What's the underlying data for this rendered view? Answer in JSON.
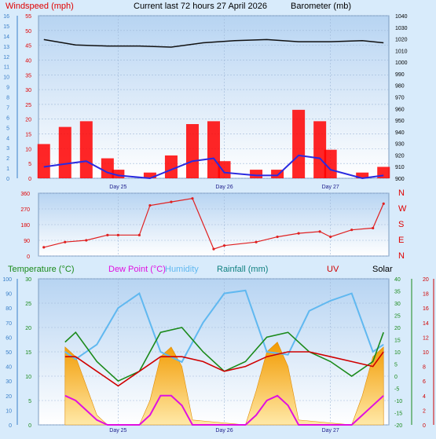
{
  "header": {
    "left_label": "Windspeed (mph)",
    "center_label": "Current last 72 hours 27 April 2026",
    "right_label": "Barometer (mb)"
  },
  "colors": {
    "windspeed": "#e00000",
    "gust": "#ff0000",
    "avg_wind": "#2a2ae0",
    "barometer": "#101010",
    "direction": "#e02020",
    "temperature": "#1a8a1a",
    "dewpoint": "#e010e0",
    "humidity": "#60b8f0",
    "rainfall": "#108080",
    "uv": "#d00000",
    "solar": "#f5a000",
    "gridline": "#9fb8d8",
    "panel_top": "#b9d6f3",
    "panel_bottom": "#ffffff"
  },
  "chart_data": [
    {
      "type": "line",
      "panel": "wind-barometer",
      "series": [
        {
          "name": "Windspeed (mph)",
          "axis": "left",
          "color_key": "gust",
          "kind": "bars",
          "x_days": [
            24.3,
            24.5,
            24.7,
            24.9,
            25.0,
            25.3,
            25.5,
            25.7,
            25.9,
            26.0,
            26.3,
            26.5,
            26.7,
            26.9,
            27.0,
            27.3,
            27.5
          ],
          "values": [
            12,
            18,
            20,
            7,
            3,
            2,
            8,
            19,
            20,
            6,
            3,
            3,
            24,
            20,
            10,
            2,
            4
          ]
        },
        {
          "name": "Average wind (mph)",
          "axis": "left",
          "color_key": "avg_wind",
          "kind": "line",
          "x_days": [
            24.3,
            24.5,
            24.7,
            24.9,
            25.0,
            25.3,
            25.5,
            25.7,
            25.9,
            26.0,
            26.3,
            26.5,
            26.7,
            26.9,
            27.0,
            27.3,
            27.5
          ],
          "values": [
            4,
            5,
            6,
            2,
            1,
            0,
            3,
            6,
            7,
            2,
            1,
            1,
            8,
            7,
            3,
            0,
            1
          ]
        },
        {
          "name": "Barometer (mb)",
          "axis": "right",
          "color_key": "barometer",
          "kind": "line",
          "x_days": [
            24.3,
            24.6,
            24.9,
            25.2,
            25.5,
            25.8,
            26.1,
            26.4,
            26.7,
            27.0,
            27.3,
            27.5
          ],
          "values": [
            1025,
            1020,
            1019,
            1019,
            1018,
            1022,
            1024,
            1025,
            1023,
            1023,
            1024,
            1022
          ]
        }
      ],
      "y_left_ticks": [
        "0",
        "5",
        "10",
        "15",
        "20",
        "25",
        "30",
        "35",
        "40",
        "45",
        "50",
        "55"
      ],
      "y_far_left_ticks": [
        "0",
        "1",
        "2",
        "3",
        "4",
        "5",
        "6",
        "7",
        "8",
        "9",
        "10",
        "11",
        "12",
        "13",
        "14",
        "15",
        "16"
      ],
      "y_right_ticks": [
        "900",
        "910",
        "920",
        "930",
        "940",
        "950",
        "960",
        "970",
        "980",
        "990",
        "1000",
        "1010",
        "1020",
        "1030",
        "1040"
      ],
      "ylim_left": [
        0,
        57
      ],
      "ylim_right": [
        897,
        1047
      ],
      "x_labels": [
        "Day 25",
        "Day 26",
        "Day 27"
      ],
      "grid": true
    },
    {
      "type": "scatter",
      "panel": "wind-direction",
      "series": [
        {
          "name": "Wind direction",
          "color_key": "direction",
          "x_days": [
            24.3,
            24.5,
            24.7,
            24.9,
            25.0,
            25.2,
            25.3,
            25.5,
            25.7,
            25.9,
            26.0,
            26.3,
            26.5,
            26.7,
            26.9,
            27.0,
            27.2,
            27.4,
            27.5
          ],
          "values": [
            50,
            80,
            90,
            120,
            120,
            120,
            290,
            310,
            330,
            40,
            60,
            80,
            110,
            130,
            140,
            110,
            150,
            160,
            300
          ]
        }
      ],
      "y_left_ticks": [
        "0",
        "90",
        "180",
        "270",
        "360"
      ],
      "y_right_ticks": [
        "N",
        "E",
        "S",
        "W",
        "N"
      ],
      "ylim": [
        0,
        360
      ],
      "grid": true
    },
    {
      "type": "area",
      "panel": "temperature-humidity",
      "legend": [
        "Temperature (°C)",
        "Dew Point (°C)",
        "Humidity",
        "Rainfall (mm)",
        "UV",
        "Solar"
      ],
      "series": [
        {
          "name": "Solar",
          "color_key": "solar",
          "kind": "area",
          "x_days": [
            24.5,
            24.6,
            24.7,
            24.8,
            24.9,
            25.2,
            25.3,
            25.4,
            25.5,
            25.6,
            25.7,
            26.2,
            26.3,
            26.4,
            26.5,
            26.6,
            26.7,
            27.2,
            27.3,
            27.4,
            27.5
          ],
          "values": [
            16,
            14,
            8,
            2,
            0,
            0,
            5,
            14,
            16,
            12,
            1,
            0,
            7,
            15,
            17,
            12,
            1,
            0,
            6,
            14,
            16
          ]
        },
        {
          "name": "UV",
          "color_key": "uv",
          "kind": "line",
          "x_days": [
            24.5,
            24.6,
            24.7,
            24.8,
            24.9,
            25.2,
            25.3,
            25.4,
            25.5,
            25.6,
            25.7,
            26.2,
            26.3,
            26.4,
            26.5,
            26.6,
            26.7,
            27.2,
            27.3,
            27.4,
            27.5
          ],
          "values": [
            6,
            5,
            3,
            1,
            0,
            0,
            2,
            6,
            6,
            4,
            0,
            0,
            2,
            5,
            6,
            4,
            0,
            0,
            2,
            4,
            6
          ]
        },
        {
          "name": "Temperature (°C)",
          "color_key": "temperature",
          "kind": "line",
          "x_days": [
            24.5,
            24.6,
            24.8,
            25.0,
            25.2,
            25.4,
            25.6,
            25.8,
            26.0,
            26.2,
            26.4,
            26.6,
            26.8,
            27.0,
            27.2,
            27.4,
            27.5
          ],
          "values": [
            17,
            19,
            13,
            9,
            11,
            19,
            20,
            15,
            11,
            13,
            18,
            19,
            15,
            13,
            10,
            13,
            19
          ]
        },
        {
          "name": "Dew Point (°C)",
          "color_key": "dewpoint",
          "kind": "line",
          "x_days": [
            24.5,
            24.6,
            24.8,
            25.0,
            25.2,
            25.4,
            25.6,
            25.8,
            26.0,
            26.2,
            26.4,
            26.6,
            26.8,
            27.0,
            27.2,
            27.4,
            27.5
          ],
          "values": [
            14,
            14,
            11,
            8,
            11,
            14,
            14,
            13,
            11,
            12,
            14,
            15,
            15,
            14,
            13,
            12,
            15
          ]
        },
        {
          "name": "Humidity",
          "color_key": "humidity",
          "kind": "line",
          "x_days": [
            24.5,
            24.6,
            24.8,
            25.0,
            25.2,
            25.4,
            25.6,
            25.8,
            26.0,
            26.2,
            26.4,
            26.6,
            26.8,
            27.0,
            27.2,
            27.4,
            27.5
          ],
          "values": [
            50,
            45,
            55,
            80,
            90,
            50,
            43,
            70,
            90,
            92,
            50,
            48,
            78,
            85,
            90,
            50,
            55
          ]
        }
      ],
      "y_far_left_ticks": [
        "0",
        "10",
        "20",
        "30",
        "40",
        "50",
        "60",
        "70",
        "80",
        "90",
        "100"
      ],
      "y_left_ticks": [
        "0",
        "5",
        "10",
        "15",
        "20",
        "25",
        "30"
      ],
      "y_right_ticks": [
        "-20",
        "-15",
        "-10",
        "-5",
        "0",
        "5",
        "10",
        "15",
        "20",
        "25",
        "30",
        "35",
        "40"
      ],
      "y_far_right_ticks": [
        "0",
        "2",
        "4",
        "6",
        "8",
        "10",
        "12",
        "14",
        "16",
        "18",
        "20"
      ],
      "ylim_temperature": [
        0,
        30
      ],
      "ylim_humidity": [
        0,
        100
      ],
      "x_labels": [
        "Day 25",
        "Day 26",
        "Day 27"
      ],
      "grid": true
    }
  ]
}
